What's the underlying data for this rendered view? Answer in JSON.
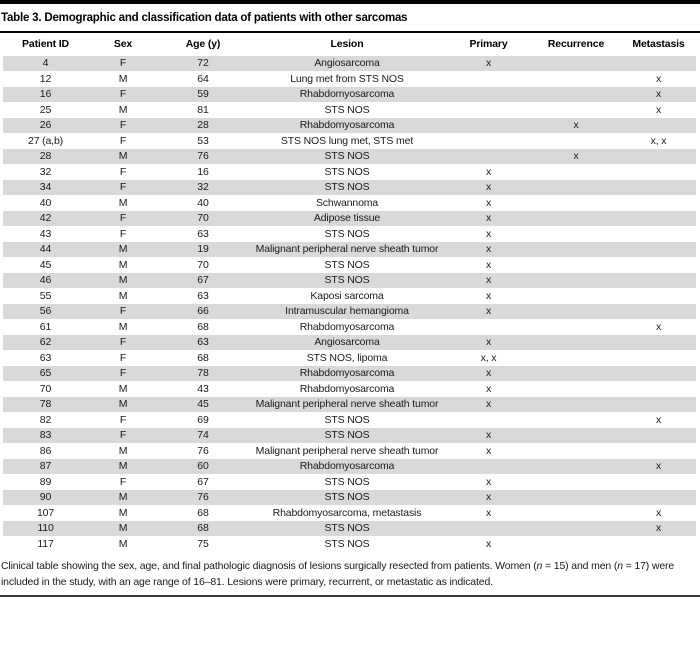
{
  "table": {
    "title": "Table 3. Demographic and classification data of patients with other sarcomas",
    "columns": [
      "Patient ID",
      "Sex",
      "Age (y)",
      "Lesion",
      "Primary",
      "Recurrence",
      "Metastasis"
    ],
    "rows": [
      [
        "4",
        "F",
        "72",
        "Angiosarcoma",
        "x",
        "",
        ""
      ],
      [
        "12",
        "M",
        "64",
        "Lung met from STS NOS",
        "",
        "",
        "x"
      ],
      [
        "16",
        "F",
        "59",
        "Rhabdomyosarcoma",
        "",
        "",
        "x"
      ],
      [
        "25",
        "M",
        "81",
        "STS NOS",
        "",
        "",
        "x"
      ],
      [
        "26",
        "F",
        "28",
        "Rhabdomyosarcoma",
        "",
        "x",
        ""
      ],
      [
        "27 (a,b)",
        "F",
        "53",
        "STS NOS lung met, STS met",
        "",
        "",
        "x, x"
      ],
      [
        "28",
        "M",
        "76",
        "STS NOS",
        "",
        "x",
        ""
      ],
      [
        "32",
        "F",
        "16",
        "STS NOS",
        "x",
        "",
        ""
      ],
      [
        "34",
        "F",
        "32",
        "STS NOS",
        "x",
        "",
        ""
      ],
      [
        "40",
        "M",
        "40",
        "Schwannoma",
        "x",
        "",
        ""
      ],
      [
        "42",
        "F",
        "70",
        "Adipose tissue",
        "x",
        "",
        ""
      ],
      [
        "43",
        "F",
        "63",
        "STS NOS",
        "x",
        "",
        ""
      ],
      [
        "44",
        "M",
        "19",
        "Malignant peripheral nerve sheath tumor",
        "x",
        "",
        ""
      ],
      [
        "45",
        "M",
        "70",
        "STS NOS",
        "x",
        "",
        ""
      ],
      [
        "46",
        "M",
        "67",
        "STS NOS",
        "x",
        "",
        ""
      ],
      [
        "55",
        "M",
        "63",
        "Kaposi sarcoma",
        "x",
        "",
        ""
      ],
      [
        "56",
        "F",
        "66",
        "Intramuscular hemangioma",
        "x",
        "",
        ""
      ],
      [
        "61",
        "M",
        "68",
        "Rhabdomyosarcoma",
        "",
        "",
        "x"
      ],
      [
        "62",
        "F",
        "63",
        "Angiosarcoma",
        "x",
        "",
        ""
      ],
      [
        "63",
        "F",
        "68",
        "STS NOS, lipoma",
        "x, x",
        "",
        ""
      ],
      [
        "65",
        "F",
        "78",
        "Rhabdomyosarcoma",
        "x",
        "",
        ""
      ],
      [
        "70",
        "M",
        "43",
        "Rhabdomyosarcoma",
        "x",
        "",
        ""
      ],
      [
        "78",
        "M",
        "45",
        "Malignant peripheral nerve sheath tumor",
        "x",
        "",
        ""
      ],
      [
        "82",
        "F",
        "69",
        "STS NOS",
        "",
        "",
        "x"
      ],
      [
        "83",
        "F",
        "74",
        "STS NOS",
        "x",
        "",
        ""
      ],
      [
        "86",
        "M",
        "76",
        "Malignant peripheral nerve sheath tumor",
        "x",
        "",
        ""
      ],
      [
        "87",
        "M",
        "60",
        "Rhabdomyosarcoma",
        "",
        "",
        "x"
      ],
      [
        "89",
        "F",
        "67",
        "STS NOS",
        "x",
        "",
        ""
      ],
      [
        "90",
        "M",
        "76",
        "STS NOS",
        "x",
        "",
        ""
      ],
      [
        "107",
        "M",
        "68",
        "Rhabdomyosarcoma, metastasis",
        "x",
        "",
        "x"
      ],
      [
        "110",
        "M",
        "68",
        "STS NOS",
        "",
        "",
        "x"
      ],
      [
        "117",
        "M",
        "75",
        "STS NOS",
        "x",
        "",
        ""
      ]
    ],
    "footnote_segments": [
      {
        "text": "Clinical table showing the sex, age, and final pathologic diagnosis of lesions surgically resected from patients. Women (",
        "italic": false
      },
      {
        "text": "n",
        "italic": true
      },
      {
        "text": " = 15) and men (",
        "italic": false
      },
      {
        "text": "n",
        "italic": true
      },
      {
        "text": " = 17) were included in the study, with an age range of 16–81. Lesions were primary, recurrent, or metastatic as indicated.",
        "italic": false
      }
    ],
    "colors": {
      "row_shade": "#d9d9d9",
      "rule": "#000000"
    }
  }
}
